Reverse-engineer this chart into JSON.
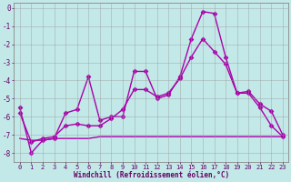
{
  "xlabel": "Windchill (Refroidissement éolien,°C)",
  "background_color": "#c2e8e8",
  "grid_color": "#999999",
  "line_color": "#aa00aa",
  "ylim": [
    -8.5,
    0.3
  ],
  "xlim": [
    -0.5,
    23.5
  ],
  "yticks": [
    0,
    -1,
    -2,
    -3,
    -4,
    -5,
    -6,
    -7,
    -8
  ],
  "xticks": [
    0,
    1,
    2,
    3,
    4,
    5,
    6,
    7,
    8,
    9,
    10,
    11,
    12,
    13,
    14,
    15,
    16,
    17,
    18,
    19,
    20,
    21,
    22,
    23
  ],
  "line1_x": [
    0,
    1,
    2,
    3,
    4,
    5,
    6,
    7,
    8,
    9,
    10,
    11,
    12,
    13,
    14,
    15,
    16,
    17,
    18,
    19,
    20,
    21,
    22,
    23
  ],
  "line1_y": [
    -5.5,
    -8.0,
    -7.3,
    -7.2,
    -5.8,
    -5.6,
    -3.8,
    -6.2,
    -6.0,
    -6.0,
    -3.5,
    -3.5,
    -5.0,
    -4.8,
    -3.8,
    -1.7,
    -0.2,
    -0.3,
    -2.7,
    -4.7,
    -4.7,
    -5.5,
    -6.5,
    -7.1
  ],
  "line2_x": [
    0,
    1,
    2,
    3,
    4,
    5,
    6,
    7,
    8,
    9,
    10,
    11,
    12,
    13,
    14,
    15,
    16,
    17,
    18,
    19,
    20,
    21,
    22,
    23
  ],
  "line2_y": [
    -5.8,
    -7.4,
    -7.2,
    -7.1,
    -6.5,
    -6.4,
    -6.5,
    -6.5,
    -6.1,
    -5.6,
    -4.5,
    -4.5,
    -4.9,
    -4.7,
    -3.9,
    -2.7,
    -1.7,
    -2.4,
    -3.1,
    -4.7,
    -4.6,
    -5.3,
    -5.7,
    -7.0
  ],
  "line3_x": [
    0,
    1,
    2,
    3,
    4,
    5,
    6,
    7,
    8,
    9,
    10,
    11,
    12,
    13,
    14,
    15,
    16,
    17,
    18,
    19,
    20,
    21,
    22,
    23
  ],
  "line3_y": [
    -7.2,
    -7.3,
    -7.3,
    -7.2,
    -7.2,
    -7.2,
    -7.2,
    -7.1,
    -7.1,
    -7.1,
    -7.1,
    -7.1,
    -7.1,
    -7.1,
    -7.1,
    -7.1,
    -7.1,
    -7.1,
    -7.1,
    -7.1,
    -7.1,
    -7.1,
    -7.1,
    -7.1
  ],
  "marker": "D",
  "markersize": 2.5,
  "linewidth": 1.0,
  "tick_fontsize": 5,
  "xlabel_fontsize": 5.5
}
